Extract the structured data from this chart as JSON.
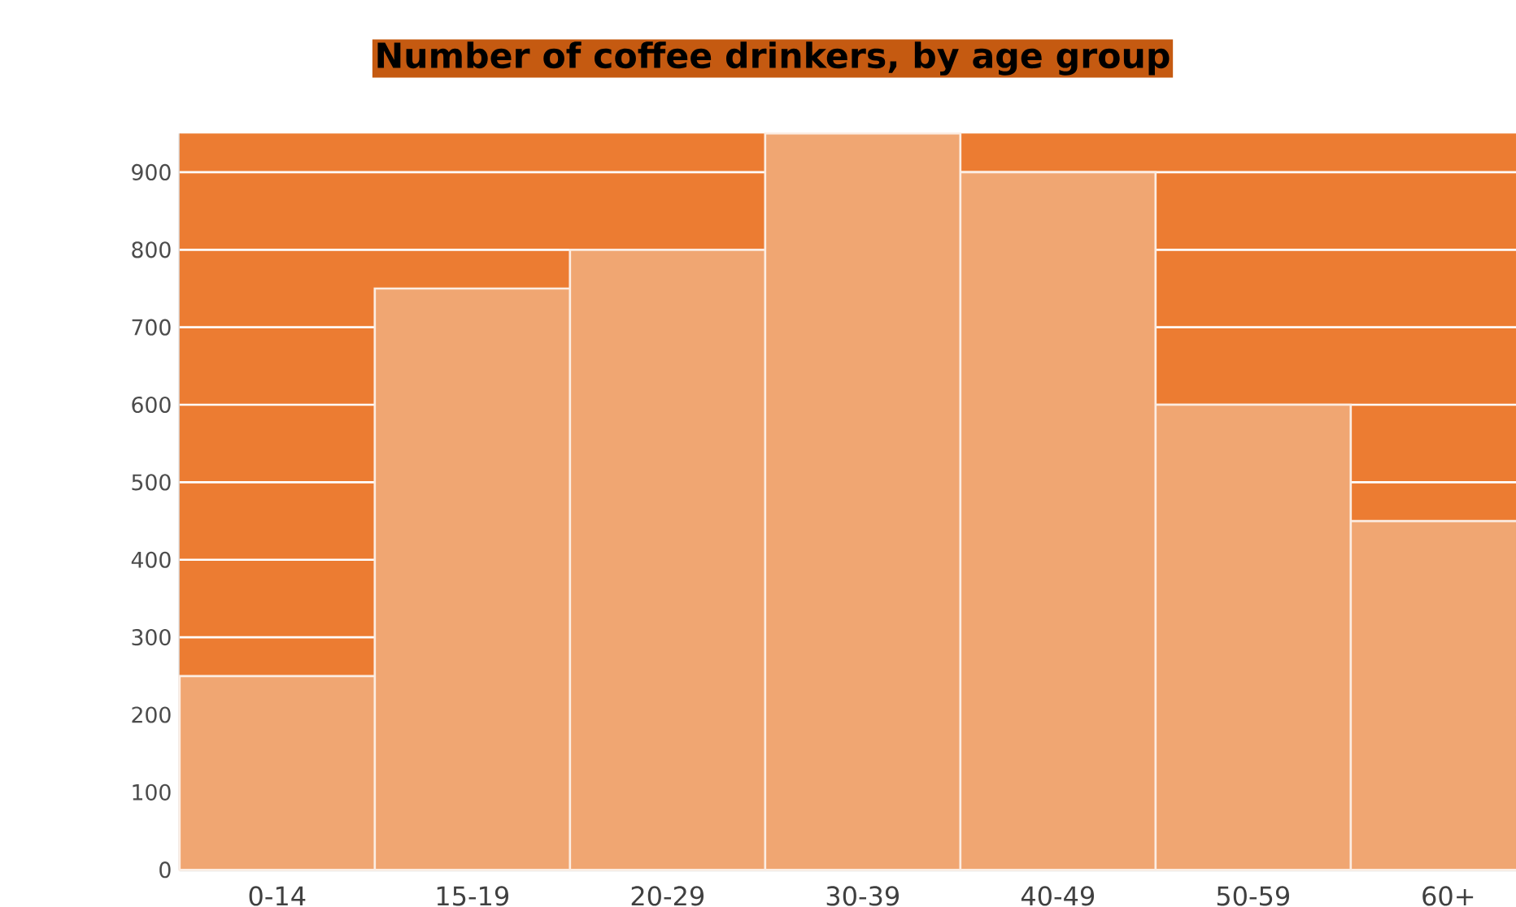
{
  "chart_data": {
    "type": "bar",
    "title": "Number of coffee drinkers, by age group",
    "categories": [
      "0-14",
      "15-19",
      "20-29",
      "30-39",
      "40-49",
      "50-59",
      "60+"
    ],
    "values": [
      250,
      750,
      800,
      950,
      900,
      600,
      450
    ],
    "color": "#f0a672",
    "bands": [
      {
        "axis": "y",
        "from": 0,
        "to": 950,
        "color": "#ec7c32"
      }
    ],
    "ylim": [
      0,
      950
    ],
    "yticks": [
      0,
      100,
      200,
      300,
      400,
      500,
      600,
      700,
      800,
      900
    ],
    "grid": "y"
  }
}
